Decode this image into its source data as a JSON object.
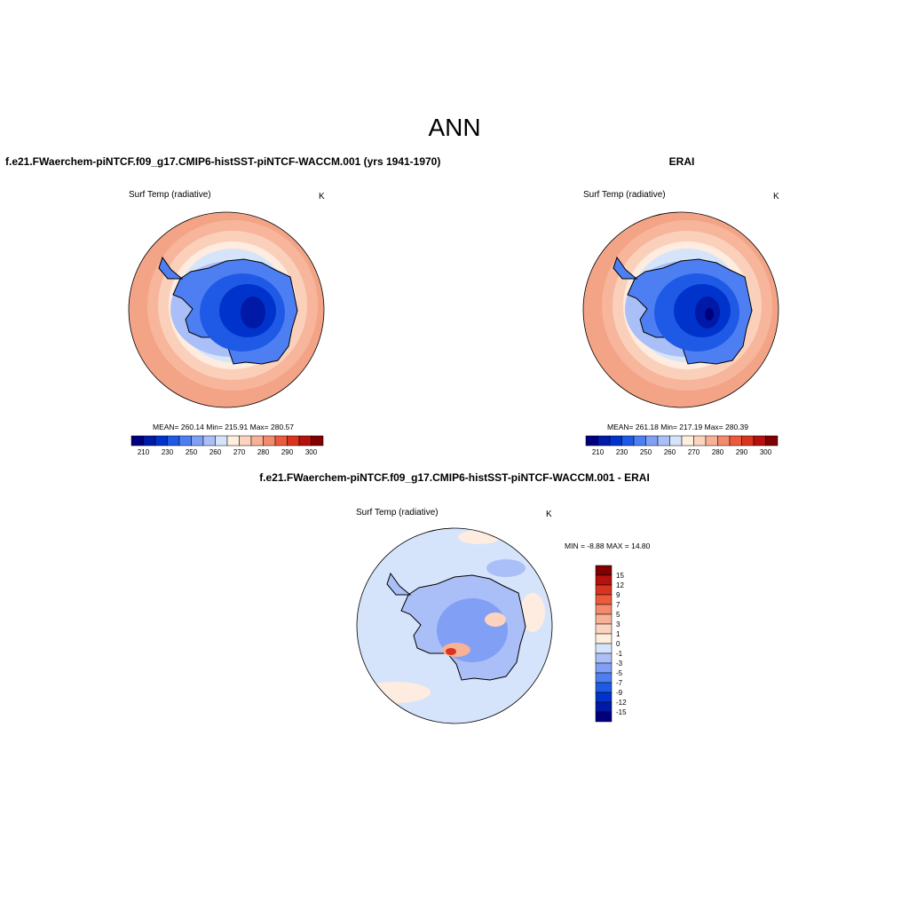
{
  "title": "ANN",
  "panels": [
    {
      "heading": "f.e21.FWaerchem-piNTCF.f09_g17.CMIP6-histSST-piNTCF-WACCM.001 (yrs 1941-1970)",
      "variable": "Surf Temp (radiative)",
      "units": "K",
      "stats": "MEAN= 260.14  Min= 215.91  Max= 280.57"
    },
    {
      "heading": "ERAI",
      "variable": "Surf Temp (radiative)",
      "units": "K",
      "stats": "MEAN= 261.18  Min= 217.19  Max= 280.39"
    },
    {
      "heading": "f.e21.FWaerchem-piNTCF.f09_g17.CMIP6-histSST-piNTCF-WACCM.001 - ERAI",
      "variable": "Surf Temp (radiative)",
      "units": "K",
      "stats": "MIN =  -8.88 MAX =  14.80"
    }
  ],
  "colorbar_abs": {
    "colors": [
      "#00007f",
      "#0019a6",
      "#0033cc",
      "#1f5ae6",
      "#4d7ff2",
      "#809ff5",
      "#aabff7",
      "#d6e4fb",
      "#fdeede",
      "#fbd3bf",
      "#f7b196",
      "#f48a6d",
      "#ec5a3c",
      "#d9341f",
      "#b5110d",
      "#800000"
    ],
    "ticks": [
      "210",
      "230",
      "250",
      "260",
      "270",
      "280",
      "290",
      "300"
    ]
  },
  "colorbar_diff": {
    "colors": [
      "#800000",
      "#b5110d",
      "#d9341f",
      "#ec5a3c",
      "#f48a6d",
      "#f7b196",
      "#fbd3bf",
      "#fdeede",
      "#d6e4fb",
      "#aabff7",
      "#809ff5",
      "#4d7ff2",
      "#1f5ae6",
      "#0033cc",
      "#0019a6",
      "#00007f"
    ],
    "ticks": [
      "15",
      "12",
      "9",
      "7",
      "5",
      "3",
      "1",
      "0",
      "-1",
      "-3",
      "-5",
      "-7",
      "-9",
      "-12",
      "-15"
    ]
  }
}
